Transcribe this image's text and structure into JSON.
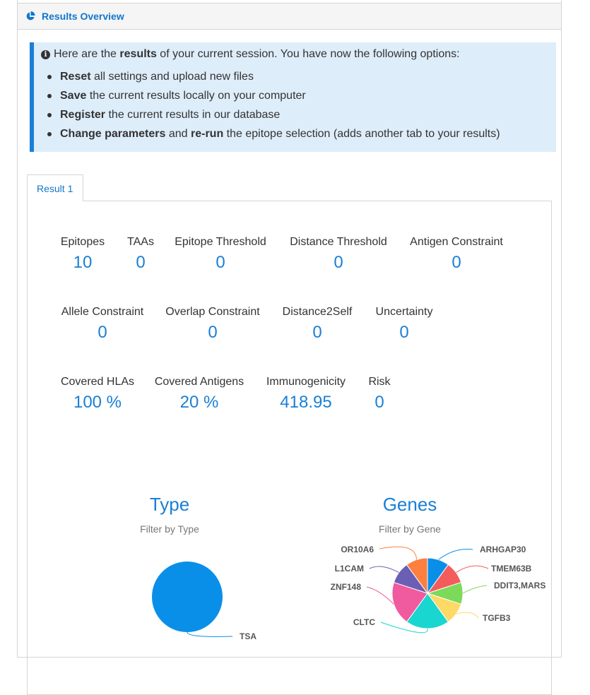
{
  "panel": {
    "title": "Results Overview"
  },
  "info": {
    "intro_pre": "Here are the ",
    "intro_bold": "results",
    "intro_post": " of your current session. You have now the following options:",
    "options": [
      {
        "bold": "Reset",
        "text": " all settings and upload new files"
      },
      {
        "bold": "Save",
        "text": " the current results locally on your computer"
      },
      {
        "bold": "Register",
        "text": " the current results in our database"
      },
      {
        "bold": "Change parameters",
        "mid": " and ",
        "bold2": "re-run",
        "text": " the epitope selection (adds another tab to your results)"
      }
    ]
  },
  "tabs": [
    {
      "label": "Result 1"
    }
  ],
  "stats": {
    "epitopes": {
      "label": "Epitopes",
      "value": "10"
    },
    "taas": {
      "label": "TAAs",
      "value": "0"
    },
    "epitope_threshold": {
      "label": "Epitope Threshold",
      "value": "0"
    },
    "distance_threshold": {
      "label": "Distance Threshold",
      "value": "0"
    },
    "antigen_constraint": {
      "label": "Antigen Constraint",
      "value": "0"
    },
    "allele_constraint": {
      "label": "Allele Constraint",
      "value": "0"
    },
    "overlap_constraint": {
      "label": "Overlap Constraint",
      "value": "0"
    },
    "distance2self": {
      "label": "Distance2Self",
      "value": "0"
    },
    "uncertainty": {
      "label": "Uncertainty",
      "value": "0"
    },
    "covered_hlas": {
      "label": "Covered HLAs",
      "value": "100 %"
    },
    "covered_antigens": {
      "label": "Covered Antigens",
      "value": "20 %"
    },
    "immunogenicity": {
      "label": "Immunogenicity",
      "value": "418.95"
    },
    "risk": {
      "label": "Risk",
      "value": "0"
    }
  },
  "chart_data": [
    {
      "type": "pie",
      "title": "Type",
      "subtitle": "Filter by Type",
      "categories": [
        "TSA"
      ],
      "values": [
        1
      ],
      "colors": [
        "#0a8fe8"
      ]
    },
    {
      "type": "pie",
      "title": "Genes",
      "subtitle": "Filter by Gene",
      "categories": [
        "ARHGAP30",
        "TMEM63B",
        "DDIT3,MARS",
        "TGFB3",
        "CLTC",
        "ZNF148",
        "L1CAM",
        "OR10A6"
      ],
      "values": [
        1,
        1,
        1,
        1,
        2,
        2,
        1,
        1
      ],
      "colors": [
        "#0a8fe8",
        "#f45b5b",
        "#7cd959",
        "#ffd966",
        "#1ad6d0",
        "#f05a9e",
        "#6a5fb5",
        "#ff7f3f"
      ]
    }
  ]
}
